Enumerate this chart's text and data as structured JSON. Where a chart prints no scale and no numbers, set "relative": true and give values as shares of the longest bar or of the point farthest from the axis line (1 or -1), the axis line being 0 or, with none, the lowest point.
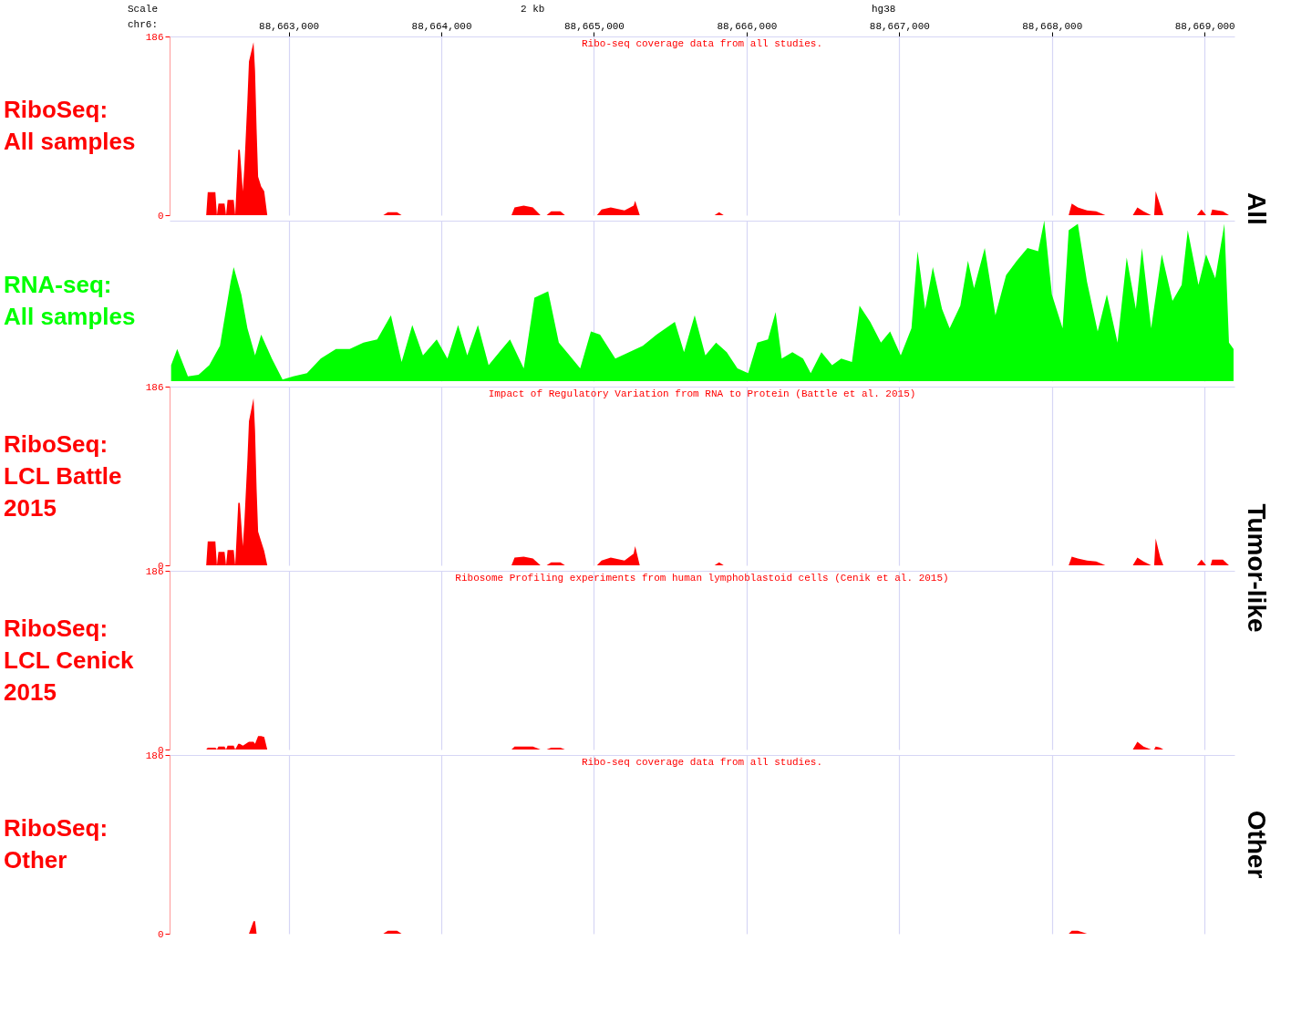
{
  "chart_data": [
    {
      "type": "area",
      "title": "RiboSeq: All samples",
      "subtitle": "Ribo-seq coverage data from all studies.",
      "annotations": [
        "Scale",
        "chr6:",
        "2 kb",
        "hg38",
        "All"
      ],
      "x": [
        88662220,
        88662460,
        88662470,
        88662520,
        88662530,
        88662540,
        88662580,
        88662590,
        88662600,
        88662640,
        88662650,
        88662670,
        88662680,
        88662700,
        88662710,
        88662730,
        88662740,
        88662770,
        88662780,
        88662790,
        88662800,
        88662820,
        88662840,
        88662860,
        88663620,
        88663650,
        88663710,
        88663740,
        88664460,
        88664480,
        88664540,
        88664600,
        88664650,
        88664690,
        88664720,
        88664780,
        88664810,
        88665020,
        88665050,
        88665110,
        88665200,
        88665260,
        88665270,
        88665300,
        88665790,
        88665820,
        88665850,
        88668110,
        88668130,
        88668170,
        88668230,
        88668290,
        88668350,
        88668530,
        88668560,
        88668600,
        88668650,
        88668670,
        88668680,
        88668710,
        88668730,
        88668950,
        88668980,
        88669010,
        88669040,
        88669050,
        88669120,
        88669160,
        88669190
      ],
      "series": [
        {
          "color": "#ff0000",
          "values": [
            0,
            0,
            24,
            24,
            0,
            12,
            12,
            0,
            16,
            16,
            0,
            68,
            68,
            25,
            50,
            120,
            160,
            180,
            150,
            90,
            40,
            30,
            25,
            0,
            0,
            3,
            3,
            0,
            0,
            8,
            10,
            8,
            0,
            0,
            4,
            4,
            0,
            0,
            6,
            8,
            5,
            10,
            15,
            0,
            0,
            3,
            0,
            0,
            12,
            8,
            5,
            4,
            0,
            0,
            8,
            4,
            0,
            0,
            25,
            10,
            0,
            0,
            6,
            0,
            0,
            6,
            4,
            0,
            0
          ]
        }
      ],
      "xlim": [
        88662220,
        88669196
      ],
      "xticks": [
        {
          "value": 88663000,
          "label": "88,663,000"
        },
        {
          "value": 88664000,
          "label": "88,664,000"
        },
        {
          "value": 88665000,
          "label": "88,665,000"
        },
        {
          "value": 88666000,
          "label": "88,666,000"
        },
        {
          "value": 88667000,
          "label": "88,667,000"
        },
        {
          "value": 88668000,
          "label": "88,668,000"
        },
        {
          "value": 88669000,
          "label": "88,669,000"
        }
      ],
      "ylim": [
        0,
        186
      ],
      "yticks": [
        0,
        186
      ],
      "grid": "x"
    },
    {
      "type": "area",
      "title": "RNA-seq: All samples",
      "relative": true,
      "tick_labels": false,
      "x": [
        88662230,
        88662270,
        88662340,
        88662410,
        88662480,
        88662550,
        88662620,
        88662640,
        88662690,
        88662730,
        88662780,
        88662820,
        88662890,
        88662960,
        88663030,
        88663120,
        88663210,
        88663310,
        88663400,
        88663490,
        88663580,
        88663670,
        88663740,
        88663810,
        88663880,
        88663970,
        88664040,
        88664110,
        88664170,
        88664240,
        88664310,
        88664380,
        88664450,
        88664540,
        88664610,
        88664700,
        88664770,
        88664840,
        88664910,
        88664980,
        88665040,
        88665140,
        88665230,
        88665320,
        88665410,
        88665530,
        88665590,
        88665660,
        88665730,
        88665800,
        88665870,
        88665940,
        88666010,
        88666070,
        88666140,
        88666190,
        88666230,
        88666300,
        88666370,
        88666420,
        88666490,
        88666560,
        88666620,
        88666690,
        88666740,
        88666810,
        88666880,
        88666940,
        88667010,
        88667080,
        88667120,
        88667170,
        88667220,
        88667280,
        88667330,
        88667400,
        88667450,
        88667490,
        88667560,
        88667630,
        88667700,
        88667770,
        88667840,
        88667910,
        88667950,
        88668000,
        88668070,
        88668110,
        88668170,
        88668230,
        88668300,
        88668360,
        88668430,
        88668490,
        88668550,
        88668590,
        88668650,
        88668720,
        88668790,
        88668850,
        88668890,
        88668960,
        88669010,
        88669070,
        88669130,
        88669160,
        88669190
      ],
      "series": [
        {
          "color": "#00ff00",
          "values": [
            0.1,
            0.2,
            0.03,
            0.04,
            0.1,
            0.22,
            0.62,
            0.71,
            0.54,
            0.33,
            0.16,
            0.29,
            0.14,
            0.01,
            0.03,
            0.05,
            0.14,
            0.2,
            0.2,
            0.24,
            0.26,
            0.41,
            0.12,
            0.35,
            0.16,
            0.26,
            0.14,
            0.35,
            0.16,
            0.35,
            0.1,
            0.18,
            0.26,
            0.08,
            0.52,
            0.56,
            0.24,
            0.16,
            0.08,
            0.31,
            0.29,
            0.14,
            0.18,
            0.22,
            0.29,
            0.37,
            0.18,
            0.41,
            0.16,
            0.24,
            0.18,
            0.08,
            0.05,
            0.24,
            0.26,
            0.43,
            0.14,
            0.18,
            0.14,
            0.05,
            0.18,
            0.1,
            0.14,
            0.12,
            0.47,
            0.37,
            0.24,
            0.31,
            0.16,
            0.33,
            0.81,
            0.45,
            0.71,
            0.45,
            0.33,
            0.47,
            0.75,
            0.58,
            0.83,
            0.41,
            0.66,
            0.75,
            0.83,
            0.81,
            1.0,
            0.54,
            0.33,
            0.94,
            0.98,
            0.62,
            0.31,
            0.54,
            0.24,
            0.77,
            0.45,
            0.83,
            0.33,
            0.79,
            0.5,
            0.6,
            0.94,
            0.6,
            0.79,
            0.64,
            0.98,
            0.24,
            0.2
          ]
        }
      ],
      "xlim": [
        88662220,
        88669196
      ],
      "xticks": [
        {
          "value": 88663000,
          "label": null
        },
        {
          "value": 88664000,
          "label": null
        },
        {
          "value": 88665000,
          "label": null
        },
        {
          "value": 88666000,
          "label": null
        },
        {
          "value": 88667000,
          "label": null
        },
        {
          "value": 88668000,
          "label": null
        },
        {
          "value": 88669000,
          "label": null
        }
      ],
      "grid": "x"
    },
    {
      "type": "area",
      "title": "RiboSeq: LCL Battle 2015",
      "subtitle": "Impact of Regulatory Variation from RNA to Protein (Battle et al. 2015)",
      "tick_labels": "y",
      "annotations": [
        "Tumor-like"
      ],
      "x": [
        88662220,
        88662460,
        88662470,
        88662520,
        88662530,
        88662540,
        88662580,
        88662590,
        88662600,
        88662640,
        88662650,
        88662670,
        88662680,
        88662700,
        88662710,
        88662730,
        88662740,
        88662770,
        88662780,
        88662790,
        88662800,
        88662820,
        88662840,
        88662860,
        88663620,
        88663650,
        88663710,
        88663740,
        88664460,
        88664480,
        88664540,
        88664600,
        88664650,
        88664690,
        88664720,
        88664780,
        88664810,
        88665020,
        88665050,
        88665110,
        88665200,
        88665260,
        88665270,
        88665300,
        88665790,
        88665820,
        88665850,
        88668110,
        88668130,
        88668170,
        88668230,
        88668290,
        88668350,
        88668530,
        88668560,
        88668600,
        88668650,
        88668670,
        88668680,
        88668710,
        88668730,
        88668950,
        88668980,
        88669010,
        88669040,
        88669050,
        88669120,
        88669160,
        88669190
      ],
      "series": [
        {
          "color": "#ff0000",
          "values": [
            0,
            0,
            25,
            25,
            0,
            14,
            14,
            0,
            16,
            16,
            0,
            65,
            65,
            20,
            45,
            110,
            150,
            174,
            140,
            80,
            35,
            25,
            15,
            0,
            0,
            0,
            0,
            0,
            0,
            8,
            9,
            7,
            0,
            0,
            3,
            3,
            0,
            0,
            5,
            8,
            5,
            12,
            20,
            0,
            0,
            3,
            0,
            0,
            9,
            7,
            5,
            4,
            0,
            0,
            8,
            4,
            0,
            0,
            28,
            8,
            0,
            0,
            6,
            0,
            0,
            6,
            6,
            0,
            0
          ]
        }
      ],
      "xlim": [
        88662220,
        88669196
      ],
      "xticks": [
        {
          "value": 88663000,
          "label": null
        },
        {
          "value": 88664000,
          "label": null
        },
        {
          "value": 88665000,
          "label": null
        },
        {
          "value": 88666000,
          "label": null
        },
        {
          "value": 88667000,
          "label": null
        },
        {
          "value": 88668000,
          "label": null
        },
        {
          "value": 88669000,
          "label": null
        }
      ],
      "ylim": [
        0,
        186
      ],
      "yticks": [
        0,
        186
      ],
      "grid": "x"
    },
    {
      "type": "area",
      "title": "RiboSeq: LCL Cenick 2015",
      "subtitle": "Ribosome Profiling experiments from human lymphoblastoid cells (Cenik et al. 2015)",
      "tick_labels": "y",
      "x": [
        88662220,
        88662460,
        88662470,
        88662520,
        88662530,
        88662540,
        88662580,
        88662590,
        88662600,
        88662640,
        88662650,
        88662670,
        88662680,
        88662700,
        88662710,
        88662730,
        88662740,
        88662770,
        88662780,
        88662790,
        88662800,
        88662820,
        88662840,
        88662860,
        88663620,
        88663650,
        88663710,
        88663740,
        88664460,
        88664480,
        88664540,
        88664600,
        88664650,
        88664690,
        88664720,
        88664780,
        88664810,
        88665020,
        88665050,
        88665110,
        88665200,
        88665260,
        88665270,
        88665300,
        88665790,
        88665820,
        88665850,
        88668110,
        88668130,
        88668170,
        88668230,
        88668290,
        88668350,
        88668530,
        88668560,
        88668600,
        88668650,
        88668670,
        88668680,
        88668710,
        88668730,
        88668950,
        88668980,
        88669010,
        88669040,
        88669050,
        88669120,
        88669160,
        88669190
      ],
      "series": [
        {
          "color": "#ff0000",
          "values": [
            0,
            0,
            2,
            2,
            0,
            3,
            3,
            0,
            4,
            4,
            0,
            6,
            6,
            4,
            5,
            7,
            8,
            8,
            6,
            10,
            14,
            14,
            13,
            0,
            0,
            0,
            0,
            0,
            0,
            3,
            3,
            3,
            0,
            0,
            2,
            2,
            0,
            0,
            0,
            0,
            0,
            0,
            0,
            0,
            0,
            0,
            0,
            0,
            0,
            0,
            0,
            0,
            0,
            0,
            8,
            3,
            0,
            0,
            3,
            2,
            0,
            0,
            0,
            0,
            0,
            0,
            0,
            0,
            0
          ]
        }
      ],
      "xlim": [
        88662220,
        88669196
      ],
      "xticks": [
        {
          "value": 88663000,
          "label": null
        },
        {
          "value": 88664000,
          "label": null
        },
        {
          "value": 88665000,
          "label": null
        },
        {
          "value": 88666000,
          "label": null
        },
        {
          "value": 88667000,
          "label": null
        },
        {
          "value": 88668000,
          "label": null
        },
        {
          "value": 88669000,
          "label": null
        }
      ],
      "ylim": [
        0,
        186
      ],
      "yticks": [
        0,
        186
      ],
      "grid": "x"
    },
    {
      "type": "area",
      "title": "RiboSeq: Other",
      "subtitle": "Ribo-seq coverage data from all studies.",
      "tick_labels": "y",
      "annotations": [
        "Other"
      ],
      "x": [
        88662220,
        88662460,
        88662470,
        88662520,
        88662530,
        88662540,
        88662580,
        88662590,
        88662600,
        88662640,
        88662650,
        88662670,
        88662680,
        88662700,
        88662710,
        88662730,
        88662740,
        88662770,
        88662780,
        88662790,
        88662800,
        88662820,
        88662840,
        88662860,
        88663620,
        88663650,
        88663710,
        88663740,
        88664460,
        88664480,
        88664540,
        88664600,
        88664650,
        88664690,
        88664720,
        88664780,
        88664810,
        88665020,
        88665050,
        88665110,
        88665200,
        88665260,
        88665270,
        88665300,
        88665790,
        88665820,
        88665850,
        88668110,
        88668130,
        88668170,
        88668230,
        88668290,
        88668350,
        88668530,
        88668560,
        88668600,
        88668650,
        88668670,
        88668680,
        88668710,
        88668730,
        88668950,
        88668980,
        88669010,
        88669040,
        88669050,
        88669120,
        88669160,
        88669190
      ],
      "series": [
        {
          "color": "#ff0000",
          "values": [
            0,
            0,
            0,
            0,
            0,
            0,
            0,
            0,
            0,
            0,
            0,
            0,
            0,
            0,
            0,
            0,
            0,
            13,
            13,
            0,
            0,
            0,
            0,
            0,
            0,
            3,
            3,
            0,
            0,
            0,
            0,
            0,
            0,
            0,
            0,
            0,
            0,
            0,
            0,
            0,
            0,
            0,
            0,
            0,
            0,
            0,
            0,
            0,
            3,
            3,
            0,
            0,
            0,
            0,
            0,
            0,
            0,
            0,
            0,
            0,
            0,
            0,
            0,
            0,
            0,
            0,
            0,
            0,
            0
          ]
        }
      ],
      "xlim": [
        88662220,
        88669196
      ],
      "xticks": [
        {
          "value": 88663000,
          "label": null
        },
        {
          "value": 88664000,
          "label": null
        },
        {
          "value": 88665000,
          "label": null
        },
        {
          "value": 88666000,
          "label": null
        },
        {
          "value": 88667000,
          "label": null
        },
        {
          "value": 88668000,
          "label": null
        },
        {
          "value": 88669000,
          "label": null
        }
      ],
      "ylim": [
        0,
        186
      ],
      "yticks": [
        0,
        186
      ],
      "grid": "x"
    }
  ]
}
